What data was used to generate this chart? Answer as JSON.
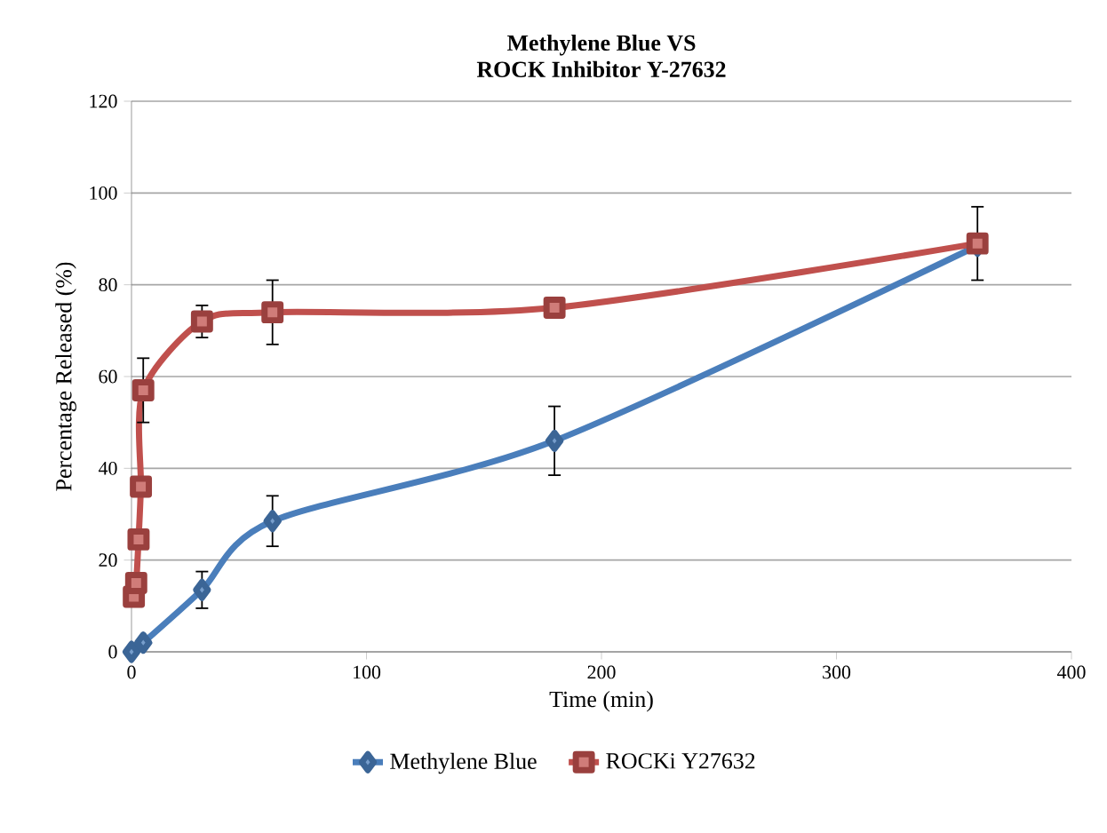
{
  "chart_data": {
    "type": "line",
    "title": "Methylene Blue VS\nROCK Inhibitor Y-27632",
    "xlabel": "Time (min)",
    "ylabel": "Percentage Released (%)",
    "xlim": [
      0,
      400
    ],
    "xticks": [
      0,
      100,
      200,
      300,
      400
    ],
    "ylim": [
      0,
      120
    ],
    "yticks": [
      0,
      20,
      40,
      60,
      80,
      100,
      120
    ],
    "grid": "y",
    "legend": "bottom",
    "series": [
      {
        "name": "Methylene Blue",
        "color": "#4a7ebb",
        "marker": "diamond",
        "x": [
          0,
          5,
          30,
          60,
          180,
          360
        ],
        "values": [
          0,
          2,
          13.5,
          28.5,
          46,
          88.5
        ],
        "errors": [
          null,
          null,
          4,
          5.5,
          7.5,
          null
        ]
      },
      {
        "name": "ROCKi Y27632",
        "color": "#c0504d",
        "marker": "square",
        "x": [
          1,
          2,
          3,
          4,
          5,
          30,
          60,
          180,
          360
        ],
        "values": [
          12,
          15,
          24.5,
          36,
          57,
          72,
          74,
          75,
          89
        ],
        "errors": [
          null,
          null,
          null,
          null,
          7,
          3.5,
          7,
          null,
          8
        ]
      }
    ]
  }
}
